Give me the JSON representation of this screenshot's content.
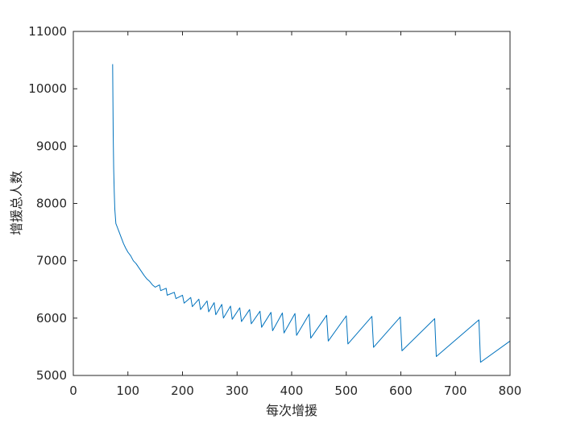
{
  "chart_data": {
    "type": "line",
    "title": "",
    "xlabel": "每次增援",
    "ylabel": "增援总人数",
    "xlim": [
      0,
      800
    ],
    "ylim": [
      5000,
      11000
    ],
    "xticks": [
      0,
      100,
      200,
      300,
      400,
      500,
      600,
      700,
      800
    ],
    "yticks": [
      5000,
      6000,
      7000,
      8000,
      9000,
      10000,
      11000
    ],
    "grid": false,
    "legend": "none",
    "series": [
      {
        "color": "#0072BD",
        "points": [
          [
            72,
            10430
          ],
          [
            73,
            9200
          ],
          [
            74,
            8600
          ],
          [
            75,
            8200
          ],
          [
            76,
            7900
          ],
          [
            78,
            7650
          ],
          [
            80,
            7600
          ],
          [
            84,
            7500
          ],
          [
            88,
            7400
          ],
          [
            92,
            7300
          ],
          [
            96,
            7220
          ],
          [
            100,
            7150
          ],
          [
            105,
            7090
          ],
          [
            110,
            7000
          ],
          [
            115,
            6950
          ],
          [
            120,
            6880
          ],
          [
            125,
            6810
          ],
          [
            130,
            6740
          ],
          [
            135,
            6680
          ],
          [
            140,
            6640
          ],
          [
            145,
            6580
          ],
          [
            150,
            6540
          ],
          [
            158,
            6580
          ],
          [
            160,
            6480
          ],
          [
            170,
            6520
          ],
          [
            172,
            6400
          ],
          [
            185,
            6450
          ],
          [
            188,
            6340
          ],
          [
            200,
            6400
          ],
          [
            203,
            6260
          ],
          [
            215,
            6360
          ],
          [
            218,
            6200
          ],
          [
            230,
            6330
          ],
          [
            233,
            6150
          ],
          [
            245,
            6300
          ],
          [
            248,
            6110
          ],
          [
            258,
            6270
          ],
          [
            261,
            6060
          ],
          [
            272,
            6240
          ],
          [
            275,
            6000
          ],
          [
            288,
            6210
          ],
          [
            291,
            5980
          ],
          [
            305,
            6180
          ],
          [
            308,
            5940
          ],
          [
            323,
            6150
          ],
          [
            326,
            5900
          ],
          [
            342,
            6120
          ],
          [
            345,
            5840
          ],
          [
            362,
            6100
          ],
          [
            365,
            5780
          ],
          [
            383,
            6090
          ],
          [
            386,
            5740
          ],
          [
            406,
            6080
          ],
          [
            409,
            5700
          ],
          [
            432,
            6070
          ],
          [
            435,
            5650
          ],
          [
            464,
            6050
          ],
          [
            467,
            5600
          ],
          [
            500,
            6040
          ],
          [
            503,
            5550
          ],
          [
            547,
            6030
          ],
          [
            550,
            5490
          ],
          [
            599,
            6020
          ],
          [
            602,
            5430
          ],
          [
            662,
            5990
          ],
          [
            665,
            5330
          ],
          [
            743,
            5970
          ],
          [
            746,
            5230
          ],
          [
            800,
            5600
          ]
        ]
      }
    ]
  }
}
